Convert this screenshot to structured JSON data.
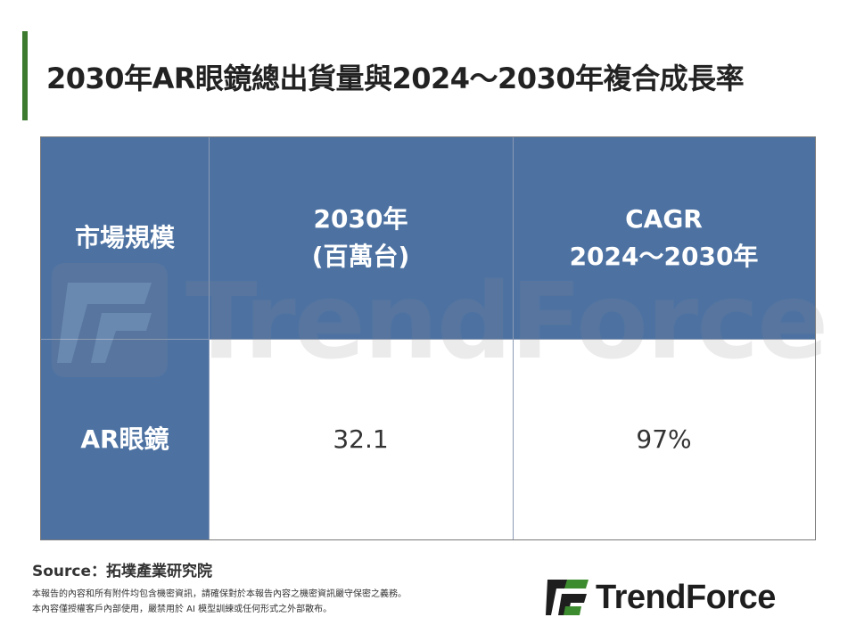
{
  "title": "2030年AR眼鏡總出貨量與2024～2030年複合成長率",
  "table": {
    "header": {
      "col1": "市場規模",
      "col2_line1": "2030年",
      "col2_line2": "(百萬台)",
      "col3_line1": "CAGR",
      "col3_line2": "2024～2030年"
    },
    "row": {
      "label": "AR眼鏡",
      "shipments": "32.1",
      "cagr": "97%"
    }
  },
  "watermark": "TrendForce",
  "source": "Source：拓墣產業研究院",
  "disclaimer": [
    "本報告的內容和所有附件均包含機密資訊，請確保對於本報告內容之機密資訊嚴守保密之義務。",
    "本內容僅授權客戶內部使用，嚴禁用於 AI 模型訓練或任何形式之外部散布。"
  ],
  "brand": "TrendForce",
  "colors": {
    "accent_bar": "#3c7a2f",
    "header_blue": "#4d72a2",
    "logo_green": "#3d8b2f",
    "logo_dark": "#1e1e1e"
  }
}
